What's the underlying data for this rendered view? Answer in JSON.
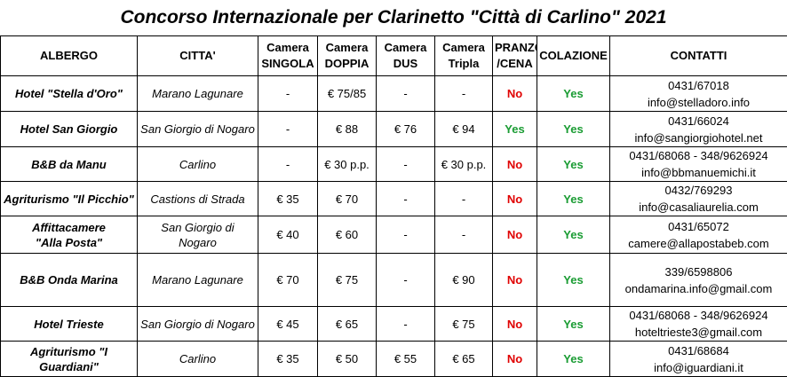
{
  "title": "Concorso Internazionale per Clarinetto \"Città di Carlino\" 2021",
  "headers": {
    "albergo": "ALBERGO",
    "citta": "CITTA'",
    "singola_1": "Camera",
    "singola_2": "SINGOLA",
    "doppia_1": "Camera",
    "doppia_2": "DOPPIA",
    "dus_1": "Camera",
    "dus_2": "DUS",
    "tripla_1": "Camera",
    "tripla_2": "Tripla",
    "pranzo_1": "PRANZO",
    "pranzo_2": "/CENA",
    "colazione": "COLAZIONE",
    "contatti": "CONTATTI"
  },
  "rows": [
    {
      "hotel_1": "Hotel \"Stella d'Oro\"",
      "hotel_2": "",
      "city_1": "Marano Lagunare",
      "city_2": "",
      "singola": "-",
      "doppia": "€ 75/85",
      "dus": "-",
      "tripla": "-",
      "pranzo": "No",
      "colazione": "Yes",
      "phone": "0431/67018",
      "email": "info@stelladoro.info"
    },
    {
      "hotel_1": "Hotel San Giorgio",
      "hotel_2": "",
      "city_1": "San Giorgio di Nogaro",
      "city_2": "",
      "singola": "-",
      "doppia": "€ 88",
      "dus": "€ 76",
      "tripla": "€ 94",
      "pranzo": "Yes",
      "colazione": "Yes",
      "phone": "0431/66024",
      "email": "info@sangiorgiohotel.net"
    },
    {
      "hotel_1": "B&B da Manu",
      "hotel_2": "",
      "city_1": "Carlino",
      "city_2": "",
      "singola": "-",
      "doppia": "€ 30 p.p.",
      "dus": "-",
      "tripla": "€ 30 p.p.",
      "pranzo": "No",
      "colazione": "Yes",
      "phone": "0431/68068 - 348/9626924",
      "email": "info@bbmanuemichi.it"
    },
    {
      "hotel_1": "Agriturismo \"Il Picchio\"",
      "hotel_2": "",
      "city_1": "Castions di Strada",
      "city_2": "",
      "singola": "€ 35",
      "doppia": "€ 70",
      "dus": "-",
      "tripla": "-",
      "pranzo": "No",
      "colazione": "Yes",
      "phone": "0432/769293",
      "email": "info@casaliaurelia.com"
    },
    {
      "hotel_1": "Affittacamere",
      "hotel_2": "\"Alla Posta\"",
      "city_1": "San Giorgio di",
      "city_2": "Nogaro",
      "singola": "€ 40",
      "doppia": "€ 60",
      "dus": "-",
      "tripla": "-",
      "pranzo": "No",
      "colazione": "Yes",
      "phone": "0431/65072",
      "email": "camere@allapostabeb.com"
    },
    {
      "hotel_1": "B&B Onda Marina",
      "hotel_2": "",
      "city_1": "Marano Lagunare",
      "city_2": "",
      "singola": "€ 70",
      "doppia": "€ 75",
      "dus": "-",
      "tripla": "€ 90",
      "pranzo": "No",
      "colazione": "Yes",
      "phone": "339/6598806",
      "email": "ondamarina.info@gmail.com"
    },
    {
      "hotel_1": "Hotel Trieste",
      "hotel_2": "",
      "city_1": "San Giorgio di Nogaro",
      "city_2": "",
      "singola": "€ 45",
      "doppia": "€ 65",
      "dus": "-",
      "tripla": "€ 75",
      "pranzo": "No",
      "colazione": "Yes",
      "phone": "0431/68068 - 348/9626924",
      "email": "hoteltrieste3@gmail.com"
    },
    {
      "hotel_1": "Agriturismo \"I",
      "hotel_2": "Guardiani\"",
      "city_1": "Carlino",
      "city_2": "",
      "singola": "€ 35",
      "doppia": "€ 50",
      "dus": "€ 55",
      "tripla": "€ 65",
      "pranzo": "No",
      "colazione": "Yes",
      "phone": "0431/68684",
      "email": "info@iguardiani.it"
    }
  ]
}
